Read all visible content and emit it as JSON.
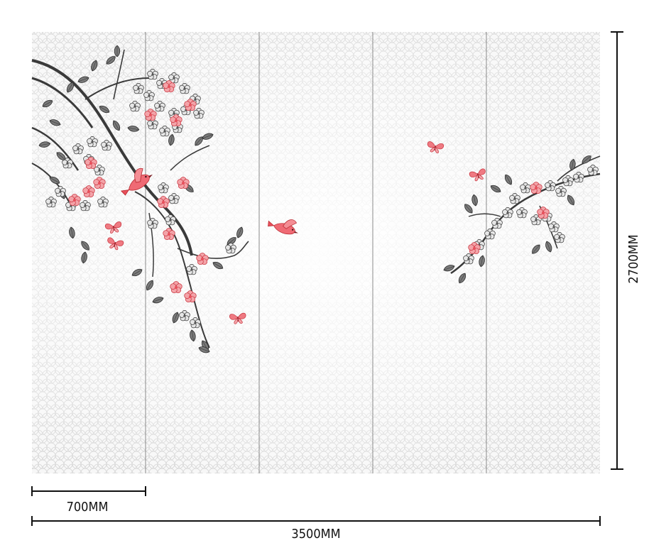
{
  "dimensions": {
    "panel_width_label": "700MM",
    "total_width_label": "3500MM",
    "height_label": "2700MM"
  },
  "mural": {
    "panel_count": 5,
    "motif": "blossom branches with birds and butterflies",
    "accent_color": "#e8505b",
    "ink_color": "#3a3a3a",
    "pattern_color": "#c9c9c9",
    "background_color": "#f6f6f6",
    "seam_color": "#8a8a8a"
  }
}
